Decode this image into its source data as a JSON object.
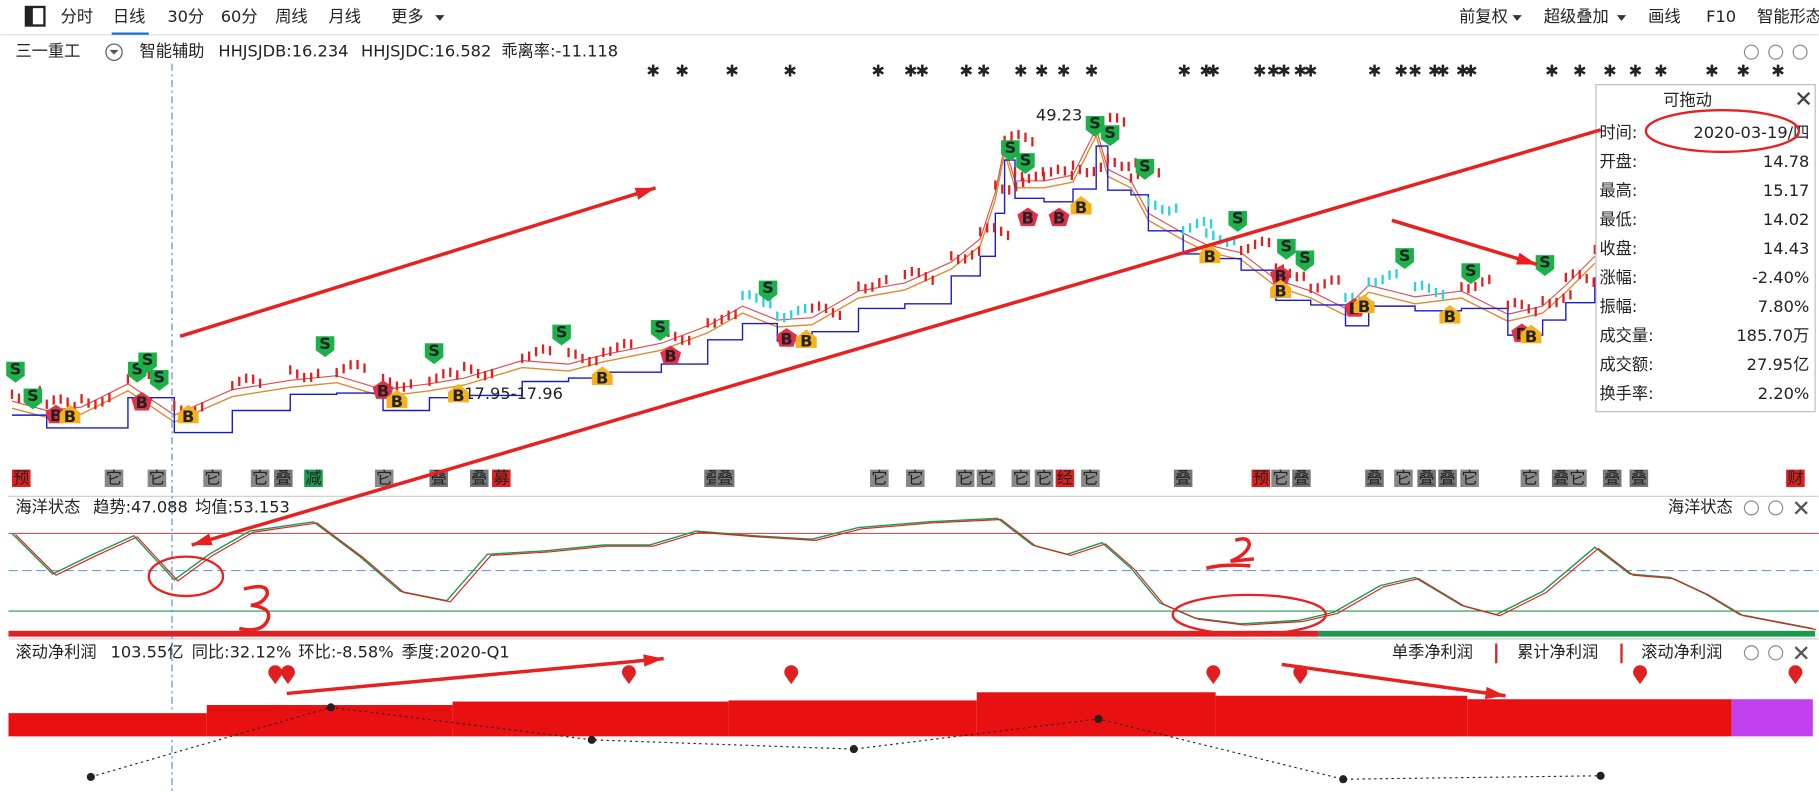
{
  "toolbar": {
    "periods": [
      "分时",
      "日线",
      "30分",
      "60分",
      "周线",
      "月线",
      "更多"
    ],
    "tools": [
      "前复权",
      "超级叠加",
      "画线",
      "F10",
      "智能形态"
    ]
  },
  "header": {
    "stock": "三一重工",
    "assist": "智能辅助",
    "indicators": [
      "HHJSJDB:16.234",
      "HHJSJDC:16.582",
      "乖离率:-11.118"
    ]
  },
  "price_labels": [
    "49.23",
    "17.95-17.96"
  ],
  "markers": {
    "sell": "S",
    "buy": "B"
  },
  "event_tags": [
    "预",
    "它",
    "它",
    "它",
    "它",
    "叠",
    "减",
    "它",
    "叠",
    "叠",
    "募",
    "叠",
    "叠",
    "它",
    "它",
    "它",
    "它",
    "它",
    "它",
    "经",
    "它",
    "叠",
    "预",
    "它",
    "叠",
    "叠",
    "它",
    "叠",
    "叠",
    "它",
    "它",
    "叠",
    "它",
    "叠",
    "叠",
    "财"
  ],
  "info_panel": {
    "title": "可拖动",
    "rows": [
      [
        "时间:",
        "2020-03-19/四"
      ],
      [
        "开盘:",
        "14.78"
      ],
      [
        "最高:",
        "15.17"
      ],
      [
        "最低:",
        "14.02"
      ],
      [
        "收盘:",
        "14.43"
      ],
      [
        "涨幅:",
        "-2.40%"
      ],
      [
        "振幅:",
        "7.80%"
      ],
      [
        "成交量:",
        "185.70万"
      ],
      [
        "成交额:",
        "27.95亿"
      ],
      [
        "换手率:",
        "2.20%"
      ]
    ]
  },
  "ocean": {
    "title": "海洋状态",
    "trend": "趋势:47.088",
    "mean": "均值:53.153"
  },
  "profit": {
    "title": "滚动净利润",
    "value": "103.55亿",
    "yoy": "同比:32.12%",
    "qoq": "环比:-8.58%",
    "quarter": "季度:2020-Q1",
    "modes": [
      "单季净利润",
      "累计净利润",
      "滚动净利润"
    ]
  }
}
